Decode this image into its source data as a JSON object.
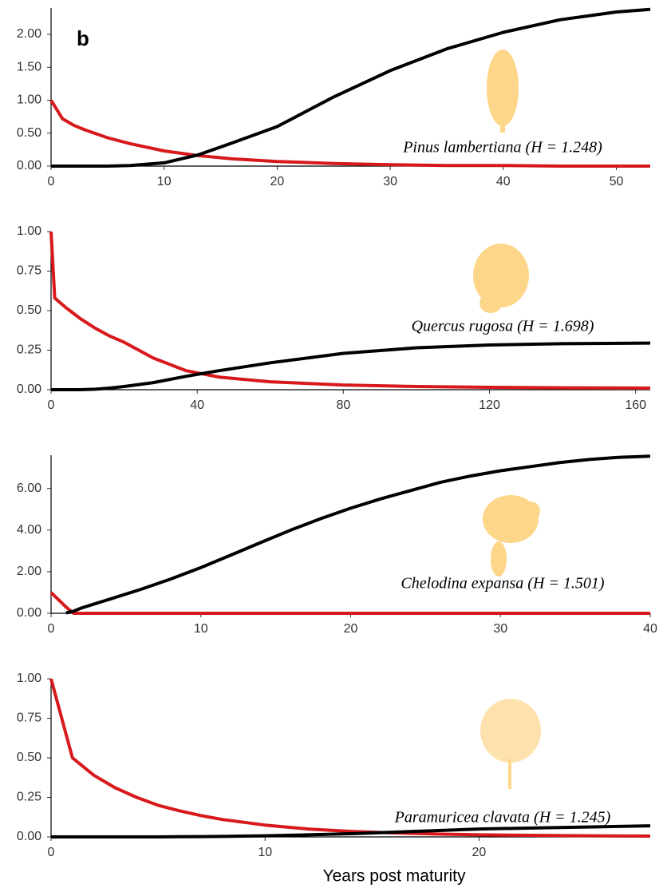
{
  "panel_label": "b",
  "xlabel": "Years post maturity",
  "chart_data": [
    {
      "type": "line",
      "annotation": "Pinus lambertiana (H = 1.248)",
      "x": [
        0,
        1,
        2,
        3,
        5,
        7,
        10,
        13,
        16,
        20,
        25,
        30,
        35,
        40,
        45,
        50,
        53
      ],
      "series": [
        {
          "color": "#d7191c",
          "values": [
            1,
            0.72,
            0.62,
            0.55,
            0.43,
            0.34,
            0.23,
            0.16,
            0.11,
            0.07,
            0.04,
            0.02,
            0.01,
            0.01,
            0,
            0,
            0
          ]
        },
        {
          "color": "#000000",
          "values": [
            0,
            0,
            0,
            0,
            0,
            0.01,
            0.05,
            0.17,
            0.35,
            0.6,
            1.05,
            1.45,
            1.78,
            2.03,
            2.22,
            2.34,
            2.38
          ]
        }
      ],
      "xlim": [
        0,
        53
      ],
      "xticks": [
        0,
        10,
        20,
        30,
        40,
        50
      ],
      "ylim": [
        0,
        2.4
      ],
      "yticks": [
        {
          "value": 0,
          "label": "0.00"
        },
        {
          "value": 0.5,
          "label": "0.50"
        },
        {
          "value": 1,
          "label": "1.00"
        },
        {
          "value": 1.5,
          "label": "1.50"
        },
        {
          "value": 2,
          "label": "2.00"
        }
      ]
    },
    {
      "type": "line",
      "annotation": "Quercus rugosa (H = 1.698)",
      "x": [
        0,
        1,
        4,
        8,
        12,
        16,
        20,
        28,
        37,
        46,
        60,
        80,
        100,
        120,
        140,
        164
      ],
      "series": [
        {
          "color": "#d7191c",
          "values": [
            1,
            0.58,
            0.52,
            0.45,
            0.39,
            0.34,
            0.3,
            0.2,
            0.12,
            0.08,
            0.05,
            0.03,
            0.02,
            0.015,
            0.012,
            0.01
          ]
        },
        {
          "color": "#000000",
          "values": [
            0,
            0,
            0,
            0,
            0.003,
            0.01,
            0.02,
            0.045,
            0.085,
            0.12,
            0.17,
            0.23,
            0.265,
            0.283,
            0.291,
            0.295
          ]
        }
      ],
      "xlim": [
        0,
        164
      ],
      "xticks": [
        0,
        40,
        80,
        120,
        160
      ],
      "ylim": [
        0,
        1
      ],
      "yticks": [
        {
          "value": 0,
          "label": "0.00"
        },
        {
          "value": 0.25,
          "label": "0.25"
        },
        {
          "value": 0.5,
          "label": "0.50"
        },
        {
          "value": 0.75,
          "label": "0.75"
        },
        {
          "value": 1,
          "label": "1.00"
        }
      ]
    },
    {
      "type": "line",
      "annotation": "Chelodina expansa (H = 1.501)",
      "x": [
        0,
        1,
        1.5,
        2,
        4,
        6,
        8,
        10,
        12,
        14,
        16,
        18,
        20,
        22,
        24,
        26,
        28,
        30,
        32,
        34,
        36,
        38,
        40
      ],
      "series": [
        {
          "color": "#d7191c",
          "values": [
            1,
            0.3,
            0,
            0,
            0,
            0,
            0,
            0,
            0,
            0,
            0,
            0,
            0,
            0,
            0,
            0,
            0,
            0,
            0,
            0,
            0,
            0,
            0
          ]
        },
        {
          "color": "#000000",
          "values": [
            null,
            0.02,
            0.1,
            0.25,
            0.7,
            1.15,
            1.65,
            2.2,
            2.8,
            3.4,
            4.0,
            4.55,
            5.05,
            5.5,
            5.9,
            6.3,
            6.6,
            6.85,
            7.05,
            7.25,
            7.4,
            7.5,
            7.55
          ]
        }
      ],
      "xlim": [
        0,
        40
      ],
      "xticks": [
        0,
        10,
        20,
        30,
        40
      ],
      "ylim": [
        0,
        7.6
      ],
      "yticks": [
        {
          "value": 0,
          "label": "0.00"
        },
        {
          "value": 2,
          "label": "2.00"
        },
        {
          "value": 4,
          "label": "4.00"
        },
        {
          "value": 6,
          "label": "6.00"
        }
      ]
    },
    {
      "type": "line",
      "annotation": "Paramuricea clavata (H = 1.245)",
      "x": [
        0,
        1,
        2,
        3,
        4,
        5,
        6,
        7,
        8,
        10,
        12,
        14,
        16,
        18,
        20,
        24,
        28
      ],
      "series": [
        {
          "color": "#d7191c",
          "values": [
            1,
            0.5,
            0.39,
            0.31,
            0.25,
            0.2,
            0.165,
            0.135,
            0.11,
            0.075,
            0.05,
            0.035,
            0.025,
            0.018,
            0.013,
            0.008,
            0.005
          ]
        },
        {
          "color": "#000000",
          "values": [
            0,
            0,
            0,
            0,
            0,
            0,
            0.001,
            0.002,
            0.003,
            0.007,
            0.013,
            0.02,
            0.03,
            0.04,
            0.05,
            0.06,
            0.07
          ]
        }
      ],
      "xlim": [
        0,
        28
      ],
      "xticks": [
        0,
        10,
        20
      ],
      "ylim": [
        0,
        1
      ],
      "yticks": [
        {
          "value": 0,
          "label": "0.00"
        },
        {
          "value": 0.25,
          "label": "0.25"
        },
        {
          "value": 0.5,
          "label": "0.50"
        },
        {
          "value": 0.75,
          "label": "0.75"
        },
        {
          "value": 1,
          "label": "1.00"
        }
      ]
    }
  ]
}
